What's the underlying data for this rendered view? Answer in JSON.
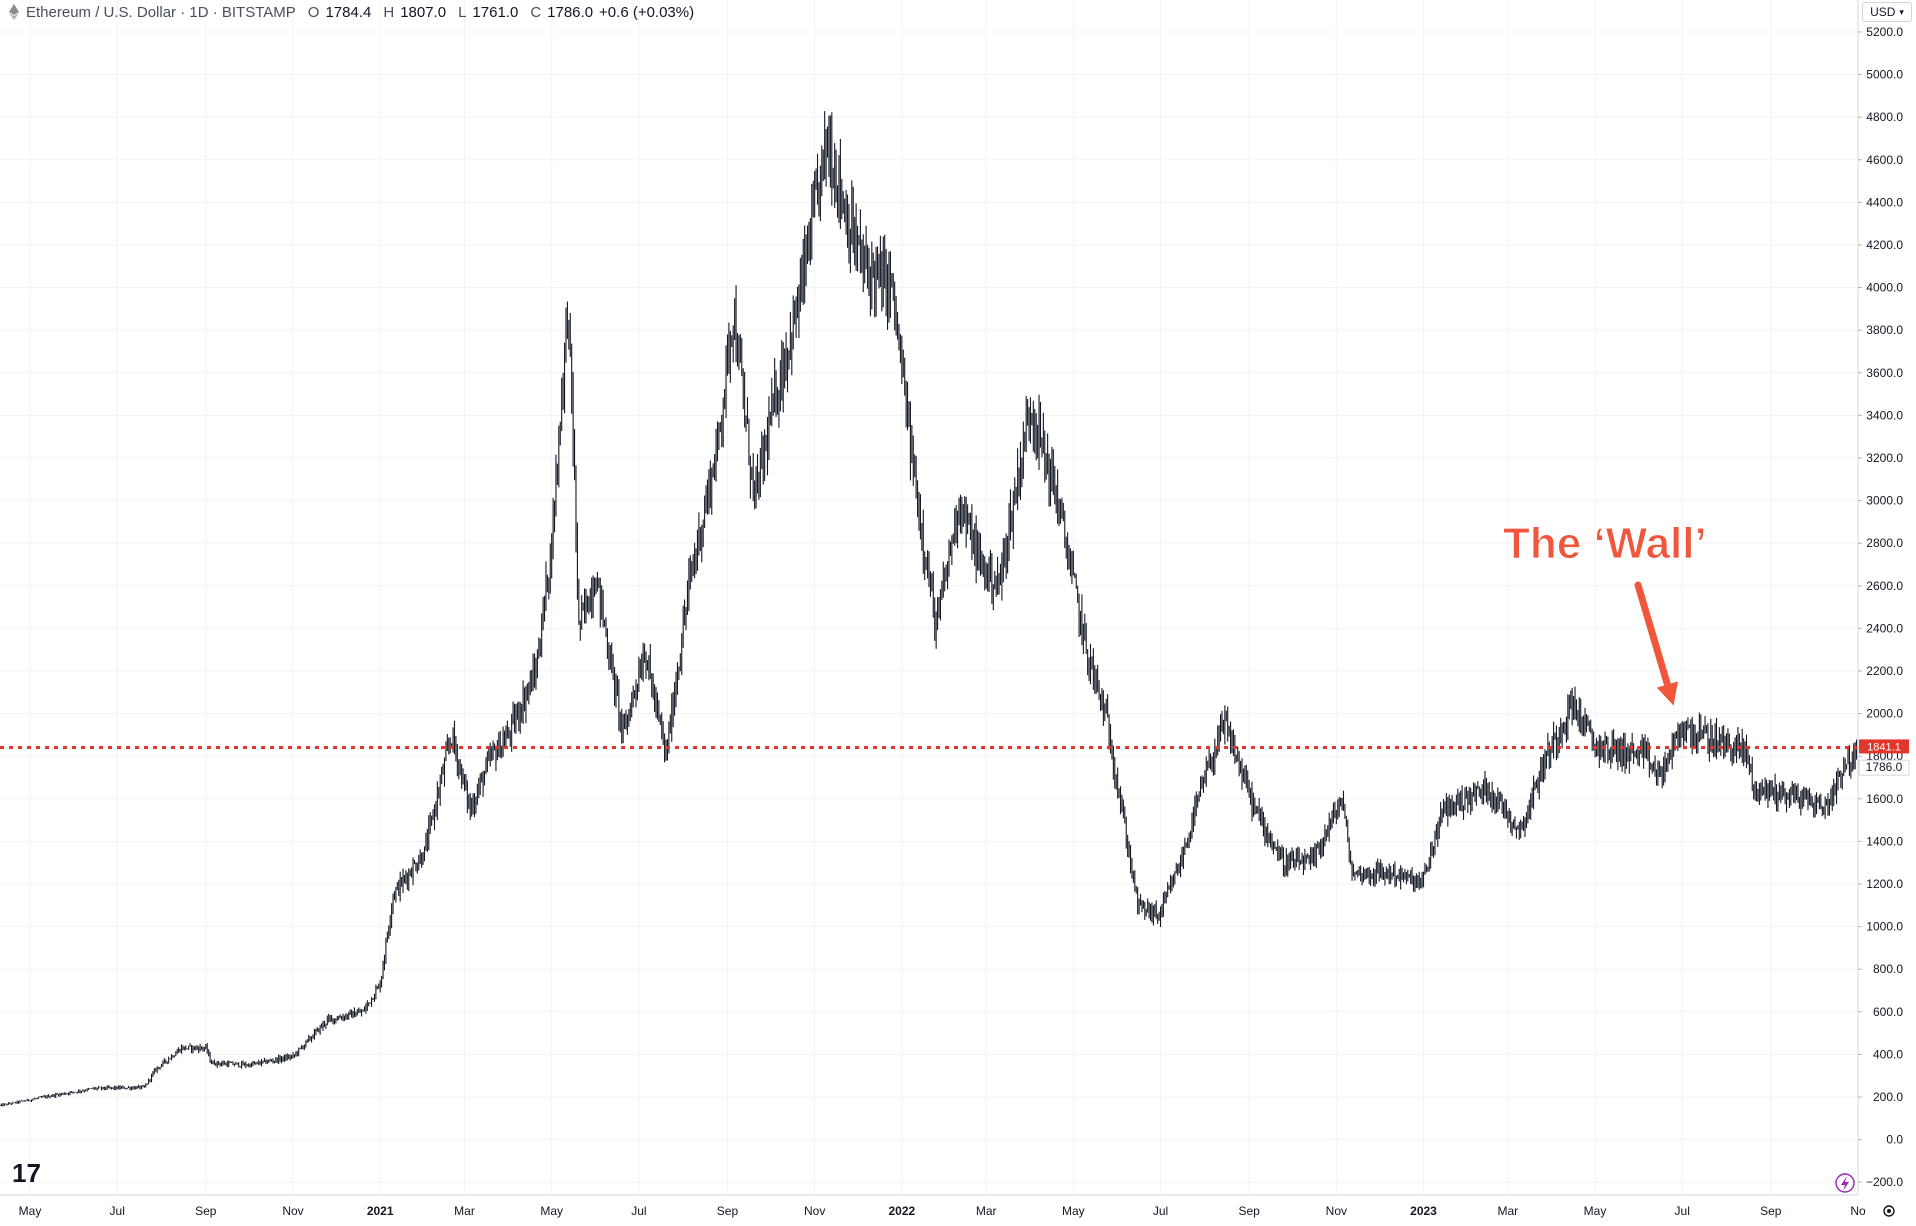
{
  "header": {
    "symbol_title": "Ethereum / U.S. Dollar · 1D · BITSTAMP",
    "open_label": "O",
    "open": "1784.4",
    "high_label": "H",
    "high": "1807.0",
    "low_label": "L",
    "low": "1761.0",
    "close_label": "C",
    "close": "1786.0",
    "change": "+0.6 (+0.03%)"
  },
  "currency_button": {
    "label": "USD"
  },
  "logo": {
    "icon": "tradingview-logo",
    "text": "17"
  },
  "colors": {
    "candles": "#131722",
    "wall_line": "#e0362c",
    "annotation": "#f0563c",
    "badge_red": "#e0362c",
    "grid": "#f0f3fa"
  },
  "chart_data": {
    "type": "candlestick",
    "title": "",
    "xlabel": "",
    "ylabel": "",
    "ylim": [
      -260,
      5350
    ],
    "y_ticks": [
      "5200.0",
      "5000.0",
      "4800.0",
      "4600.0",
      "4400.0",
      "4200.0",
      "4000.0",
      "3800.0",
      "3600.0",
      "3400.0",
      "3200.0",
      "3000.0",
      "2800.0",
      "2600.0",
      "2400.0",
      "2200.0",
      "2000.0",
      "1800.0",
      "1600.0",
      "1400.0",
      "1200.0",
      "1000.0",
      "800.0",
      "600.0",
      "400.0",
      "200.0",
      "0.0",
      "−200.0"
    ],
    "x_ticks": [
      {
        "label": "May",
        "date": "2020-05-01",
        "bold": false
      },
      {
        "label": "Jul",
        "date": "2020-07-01",
        "bold": false
      },
      {
        "label": "Sep",
        "date": "2020-09-01",
        "bold": false
      },
      {
        "label": "Nov",
        "date": "2020-11-01",
        "bold": false
      },
      {
        "label": "2021",
        "date": "2021-01-01",
        "bold": true
      },
      {
        "label": "Mar",
        "date": "2021-03-01",
        "bold": false
      },
      {
        "label": "May",
        "date": "2021-05-01",
        "bold": false
      },
      {
        "label": "Jul",
        "date": "2021-07-01",
        "bold": false
      },
      {
        "label": "Sep",
        "date": "2021-09-01",
        "bold": false
      },
      {
        "label": "Nov",
        "date": "2021-11-01",
        "bold": false
      },
      {
        "label": "2022",
        "date": "2022-01-01",
        "bold": true
      },
      {
        "label": "Mar",
        "date": "2022-03-01",
        "bold": false
      },
      {
        "label": "May",
        "date": "2022-05-01",
        "bold": false
      },
      {
        "label": "Jul",
        "date": "2022-07-01",
        "bold": false
      },
      {
        "label": "Sep",
        "date": "2022-09-01",
        "bold": false
      },
      {
        "label": "Nov",
        "date": "2022-11-01",
        "bold": false
      },
      {
        "label": "2023",
        "date": "2023-01-01",
        "bold": true
      },
      {
        "label": "Mar",
        "date": "2023-03-01",
        "bold": false
      },
      {
        "label": "May",
        "date": "2023-05-01",
        "bold": false
      },
      {
        "label": "Jul",
        "date": "2023-07-01",
        "bold": false
      },
      {
        "label": "Sep",
        "date": "2023-09-01",
        "bold": false
      },
      {
        "label": "No",
        "date": "2023-11-01",
        "bold": false
      }
    ],
    "x_range": [
      "2020-04-10",
      "2023-11-01"
    ],
    "close_path": [
      [
        "2020-04-10",
        160
      ],
      [
        "2020-05-15",
        205
      ],
      [
        "2020-06-15",
        240
      ],
      [
        "2020-07-20",
        245
      ],
      [
        "2020-07-28",
        330
      ],
      [
        "2020-08-15",
        430
      ],
      [
        "2020-09-01",
        430
      ],
      [
        "2020-09-05",
        360
      ],
      [
        "2020-10-01",
        350
      ],
      [
        "2020-11-01",
        390
      ],
      [
        "2020-11-25",
        560
      ],
      [
        "2020-12-20",
        600
      ],
      [
        "2021-01-01",
        730
      ],
      [
        "2021-01-10",
        1150
      ],
      [
        "2021-02-01",
        1350
      ],
      [
        "2021-02-20",
        1900
      ],
      [
        "2021-03-05",
        1550
      ],
      [
        "2021-03-20",
        1800
      ],
      [
        "2021-04-01",
        1900
      ],
      [
        "2021-04-20",
        2200
      ],
      [
        "2021-05-01",
        2800
      ],
      [
        "2021-05-12",
        3900
      ],
      [
        "2021-05-15",
        3500
      ],
      [
        "2021-05-20",
        2400
      ],
      [
        "2021-06-01",
        2650
      ],
      [
        "2021-06-20",
        1900
      ],
      [
        "2021-07-05",
        2300
      ],
      [
        "2021-07-20",
        1800
      ],
      [
        "2021-08-05",
        2600
      ],
      [
        "2021-08-25",
        3250
      ],
      [
        "2021-09-05",
        3900
      ],
      [
        "2021-09-20",
        3000
      ],
      [
        "2021-10-05",
        3500
      ],
      [
        "2021-10-20",
        3900
      ],
      [
        "2021-11-10",
        4700
      ],
      [
        "2021-11-25",
        4300
      ],
      [
        "2021-12-05",
        4100
      ],
      [
        "2021-12-25",
        4000
      ],
      [
        "2022-01-10",
        3100
      ],
      [
        "2022-01-25",
        2400
      ],
      [
        "2022-02-10",
        3000
      ],
      [
        "2022-02-25",
        2700
      ],
      [
        "2022-03-10",
        2600
      ],
      [
        "2022-04-01",
        3450
      ],
      [
        "2022-04-20",
        3000
      ],
      [
        "2022-05-10",
        2300
      ],
      [
        "2022-05-25",
        1950
      ],
      [
        "2022-06-15",
        1100
      ],
      [
        "2022-06-30",
        1050
      ],
      [
        "2022-07-15",
        1300
      ],
      [
        "2022-08-01",
        1700
      ],
      [
        "2022-08-15",
        1950
      ],
      [
        "2022-09-05",
        1550
      ],
      [
        "2022-09-25",
        1300
      ],
      [
        "2022-10-15",
        1300
      ],
      [
        "2022-11-05",
        1600
      ],
      [
        "2022-11-12",
        1250
      ],
      [
        "2022-12-10",
        1250
      ],
      [
        "2022-12-31",
        1200
      ],
      [
        "2023-01-15",
        1550
      ],
      [
        "2023-02-15",
        1650
      ],
      [
        "2023-03-10",
        1450
      ],
      [
        "2023-03-25",
        1750
      ],
      [
        "2023-04-15",
        2050
      ],
      [
        "2023-05-01",
        1850
      ],
      [
        "2023-06-05",
        1800
      ],
      [
        "2023-06-15",
        1700
      ],
      [
        "2023-07-01",
        1930
      ],
      [
        "2023-07-20",
        1880
      ],
      [
        "2023-08-15",
        1820
      ],
      [
        "2023-08-20",
        1650
      ],
      [
        "2023-09-15",
        1620
      ],
      [
        "2023-10-10",
        1560
      ],
      [
        "2023-10-23",
        1780
      ],
      [
        "2023-10-31",
        1786
      ]
    ],
    "horizontal_line": {
      "value": 1841.1,
      "label": "1841.1",
      "style": "dotted"
    },
    "last_price": {
      "value": 1786.0,
      "label": "1786.0"
    },
    "annotation": {
      "text": "The ‘Wall’",
      "arrow_to_date": "2023-06-25",
      "arrow_to_value": 2000
    },
    "grid": true,
    "legend": "top-left"
  }
}
